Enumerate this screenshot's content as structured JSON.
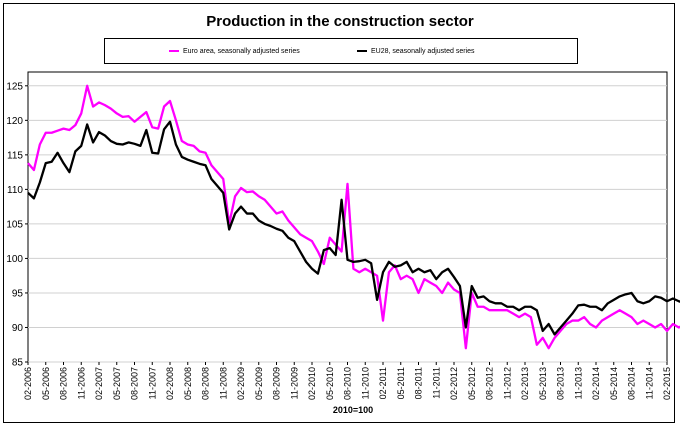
{
  "chart_data": {
    "type": "line",
    "title": "Production in the construction sector",
    "xlabel": "2010=100",
    "ylabel": "",
    "ylim": [
      85,
      127
    ],
    "yticks": [
      85,
      90,
      95,
      100,
      105,
      110,
      115,
      120,
      125
    ],
    "x_tick_labels": [
      "02-2006",
      "05-2006",
      "08-2006",
      "11-2006",
      "02-2007",
      "05-2007",
      "08-2007",
      "11-2007",
      "02-2008",
      "05-2008",
      "08-2008",
      "11-2008",
      "02-2009",
      "05-2009",
      "08-2009",
      "11-2009",
      "02-2010",
      "05-2010",
      "08-2010",
      "11-2010",
      "02-2011",
      "05-2011",
      "08-2011",
      "11-2011",
      "02-2012",
      "05-2012",
      "08-2012",
      "11-2012",
      "02-2013",
      "05-2013",
      "08-2013",
      "11-2013",
      "02-2014",
      "05-2014",
      "08-2014",
      "11-2014",
      "02-2015"
    ],
    "x_start": "02-2006",
    "x_end": "02-2015",
    "legend": "top",
    "series": [
      {
        "name": "Euro area, seasonally adjusted series",
        "color": "#ff00ff",
        "values": [
          113.8,
          112.8,
          116.5,
          118.2,
          118.2,
          118.5,
          118.8,
          118.6,
          119.3,
          121.0,
          125.0,
          122.0,
          122.6,
          122.2,
          121.7,
          121.0,
          120.5,
          120.6,
          119.8,
          120.5,
          121.2,
          119.0,
          118.8,
          122.0,
          122.8,
          120.0,
          117.0,
          116.5,
          116.3,
          115.5,
          115.3,
          113.5,
          112.5,
          111.5,
          105.0,
          109.0,
          110.2,
          109.6,
          109.7,
          109.0,
          108.5,
          107.5,
          106.5,
          106.8,
          105.5,
          104.5,
          103.5,
          103.0,
          102.5,
          101.0,
          99.2,
          103.0,
          102.0,
          101.0,
          110.8,
          98.5,
          98.0,
          98.5,
          98.0,
          97.5,
          91.0,
          98.0,
          99.0,
          97.0,
          97.5,
          97.0,
          95.0,
          97.0,
          96.5,
          96.0,
          95.0,
          96.5,
          95.5,
          95.0,
          87.0,
          95.0,
          93.0,
          93.0,
          92.5,
          92.5,
          92.5,
          92.5,
          92.0,
          91.5,
          92.0,
          91.5,
          87.5,
          88.5,
          87.0,
          88.5,
          89.5,
          90.5,
          91.0,
          91.0,
          91.5,
          90.5,
          90.0,
          91.0,
          91.5,
          92.0,
          92.5,
          92.0,
          91.5,
          90.5,
          91.0,
          90.5,
          90.0,
          90.5,
          89.5,
          90.5,
          90.0,
          90.5,
          90.0,
          91.5,
          90.0
        ]
      },
      {
        "name": "EU28, seasonally adjusted series",
        "color": "#000000",
        "values": [
          109.5,
          108.7,
          111.0,
          113.8,
          114.0,
          115.3,
          113.8,
          112.5,
          115.5,
          116.3,
          119.4,
          116.8,
          118.3,
          117.8,
          117.0,
          116.6,
          116.5,
          116.8,
          116.6,
          116.3,
          118.6,
          115.3,
          115.2,
          118.7,
          119.8,
          116.5,
          114.7,
          114.3,
          114.0,
          113.7,
          113.5,
          111.5,
          110.5,
          109.5,
          104.2,
          106.5,
          107.5,
          106.5,
          106.5,
          105.5,
          105.0,
          104.7,
          104.3,
          104.0,
          103.0,
          102.5,
          101.0,
          99.5,
          98.5,
          97.8,
          101.2,
          101.5,
          100.5,
          108.5,
          99.8,
          99.5,
          99.6,
          99.8,
          99.3,
          94.0,
          98.0,
          99.5,
          98.8,
          99.0,
          99.5,
          98.0,
          98.5,
          98.0,
          98.3,
          97.0,
          98.0,
          98.5,
          97.3,
          96.0,
          90.0,
          96.0,
          94.3,
          94.5,
          93.8,
          93.5,
          93.5,
          93.0,
          93.0,
          92.5,
          93.0,
          93.0,
          92.5,
          89.5,
          90.5,
          89.0,
          90.0,
          91.0,
          92.0,
          93.2,
          93.3,
          93.0,
          93.0,
          92.5,
          93.5,
          94.0,
          94.5,
          94.8,
          95.0,
          93.8,
          93.5,
          93.8,
          94.5,
          94.3,
          93.8,
          94.2,
          93.8,
          93.5,
          94.0,
          93.8,
          93.2
        ]
      }
    ]
  }
}
